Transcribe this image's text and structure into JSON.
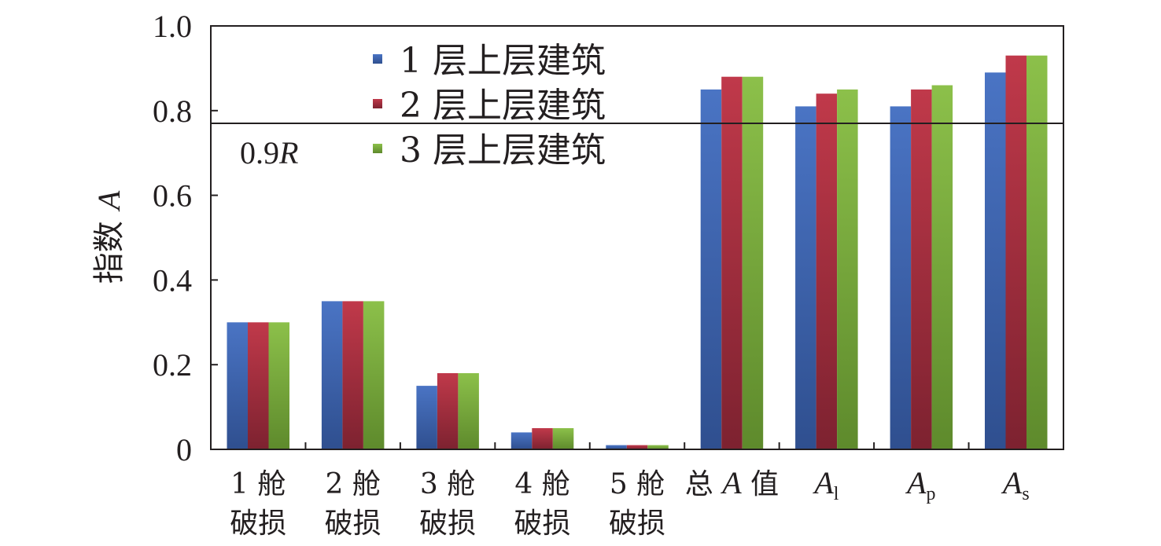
{
  "chart_data": {
    "type": "bar",
    "ylabel_cn": "指数",
    "ylabel_var": "A",
    "ylim": [
      0,
      1.0
    ],
    "yticks": [
      {
        "value": 0,
        "label": "0"
      },
      {
        "value": 0.2,
        "label": "0.2"
      },
      {
        "value": 0.4,
        "label": "0.4"
      },
      {
        "value": 0.6,
        "label": "0.6"
      },
      {
        "value": 0.8,
        "label": "0.8"
      },
      {
        "value": 1.0,
        "label": "1.0"
      }
    ],
    "categories": [
      {
        "line1": "1 舱",
        "line2": "破损"
      },
      {
        "line1": "2 舱",
        "line2": "破损"
      },
      {
        "line1": "3 舱",
        "line2": "破损"
      },
      {
        "line1": "4 舱",
        "line2": "破损"
      },
      {
        "line1": "5 舱",
        "line2": "破损"
      },
      {
        "pre": "总 ",
        "var": "A",
        "post": " 值"
      },
      {
        "var": "A",
        "sub": "l"
      },
      {
        "var": "A",
        "sub": "p"
      },
      {
        "var": "A",
        "sub": "s"
      }
    ],
    "series": [
      {
        "name": "1 层上层建筑",
        "color": "#4a74c4",
        "color_dark": "#2f4f8f",
        "values": [
          0.3,
          0.35,
          0.15,
          0.04,
          0.01,
          0.85,
          0.81,
          0.81,
          0.89
        ]
      },
      {
        "name": "2 层上层建筑",
        "color": "#c0394a",
        "color_dark": "#7d2230",
        "values": [
          0.3,
          0.35,
          0.18,
          0.05,
          0.01,
          0.88,
          0.84,
          0.85,
          0.93
        ]
      },
      {
        "name": "3 层上层建筑",
        "color": "#8cc04a",
        "color_dark": "#5e8a2c",
        "values": [
          0.3,
          0.35,
          0.18,
          0.05,
          0.01,
          0.88,
          0.85,
          0.86,
          0.93
        ]
      }
    ],
    "reference_line": {
      "value": 0.77,
      "label_num": "0.9",
      "label_var": "R"
    },
    "legend_position": "top-left",
    "grid": false
  }
}
